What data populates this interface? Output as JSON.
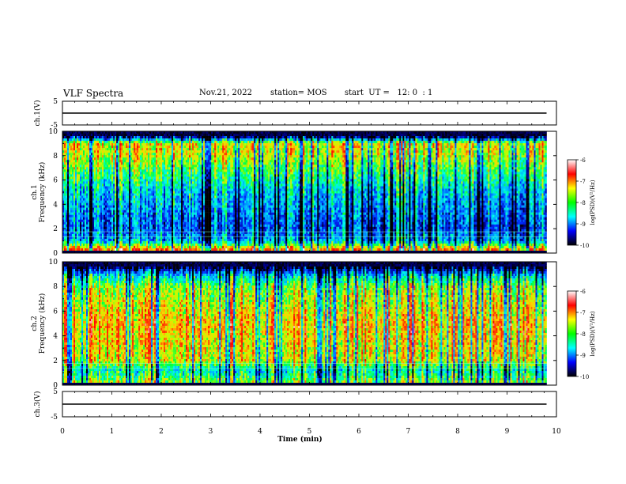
{
  "header": {
    "title": "VLF Spectra",
    "date": "Nov.21, 2022",
    "station": "station= MOS",
    "start_ut": "start  UT =   12: 0  : 1"
  },
  "colorbar": {
    "label": "log(PSD)(V²/Hz)",
    "ticks": [
      "-6",
      "-7",
      "-8",
      "-9",
      "-10"
    ],
    "stops": [
      "#ffffff",
      "#ff0000",
      "#ffff00",
      "#00ff00",
      "#00ffff",
      "#0000ff",
      "#000000"
    ]
  },
  "chart_data": [
    {
      "type": "line",
      "panel": "ch1-waveform",
      "ylabel": "ch.1(V)",
      "ylim": [
        -5,
        5
      ],
      "yticks": [
        "5",
        "-5"
      ],
      "x": [
        0,
        10
      ],
      "series": [
        {
          "values": [
            0,
            0
          ]
        }
      ]
    },
    {
      "type": "heatmap",
      "panel": "ch1-spectrogram",
      "ylabel": "ch.1",
      "ylabel2": "Frequency (kHz)",
      "ylim": [
        0,
        10
      ],
      "yticks": [
        "0",
        "2",
        "4",
        "6",
        "8",
        "10"
      ],
      "xlim": [
        0,
        10
      ],
      "data_end_min": 9.8,
      "zlim": [
        -10,
        -6
      ],
      "freq_profile_log_psd": [
        [
          0.3,
          -7.0
        ],
        [
          1.0,
          -8.8
        ],
        [
          2.0,
          -9.2
        ],
        [
          5.0,
          -8.7
        ],
        [
          8.0,
          -7.6
        ],
        [
          9.0,
          -7.4
        ],
        [
          9.6,
          -10
        ]
      ]
    },
    {
      "type": "heatmap",
      "panel": "ch2-spectrogram",
      "ylabel": "ch.2",
      "ylabel2": "Frequency (kHz)",
      "ylim": [
        0,
        10
      ],
      "yticks": [
        "0",
        "2",
        "4",
        "6",
        "8",
        "10"
      ],
      "xlim": [
        0,
        10
      ],
      "data_end_min": 9.8,
      "zlim": [
        -10,
        -6
      ],
      "freq_profile_log_psd": [
        [
          0.3,
          -7.8
        ],
        [
          1.2,
          -8.5
        ],
        [
          2.0,
          -7.5
        ],
        [
          5.0,
          -7.2
        ],
        [
          8.0,
          -7.8
        ],
        [
          9.0,
          -8.8
        ],
        [
          9.6,
          -10
        ]
      ]
    },
    {
      "type": "line",
      "panel": "ch3-waveform",
      "ylabel": "ch.3(V)",
      "ylim": [
        -5,
        5
      ],
      "yticks": [
        "5",
        "-5"
      ],
      "x": [
        0,
        10
      ],
      "series": [
        {
          "values": [
            0,
            0
          ]
        }
      ]
    }
  ],
  "xaxis": {
    "label": "Time (min)",
    "ticks": [
      "0",
      "1",
      "2",
      "3",
      "4",
      "5",
      "6",
      "7",
      "8",
      "9",
      "10"
    ]
  }
}
